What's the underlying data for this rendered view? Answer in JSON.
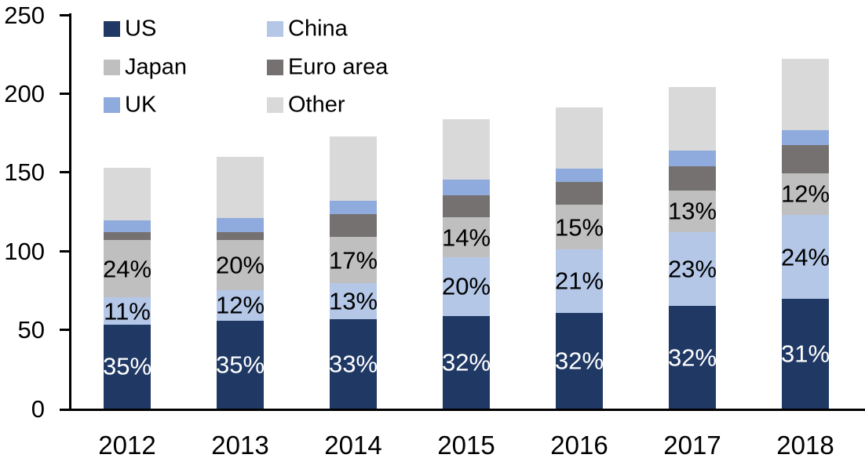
{
  "chart_data": {
    "type": "bar",
    "stacked": true,
    "title": "",
    "xlabel": "",
    "ylabel": "",
    "categories": [
      "2012",
      "2013",
      "2014",
      "2015",
      "2016",
      "2017",
      "2018"
    ],
    "series": [
      {
        "name": "US",
        "color": "#1F3864",
        "values": [
          53.5,
          56,
          57,
          59,
          61,
          65,
          69.5
        ],
        "bar_labels": [
          "35%",
          "35%",
          "33%",
          "32%",
          "32%",
          "32%",
          "31%"
        ],
        "label_color": "#FFFFFF"
      },
      {
        "name": "China",
        "color": "#B4C7E7",
        "values": [
          17,
          19,
          22.5,
          37,
          40,
          47,
          53.5
        ],
        "bar_labels": [
          "11%",
          "12%",
          "13%",
          "20%",
          "21%",
          "23%",
          "24%"
        ],
        "label_color": "#000000"
      },
      {
        "name": "Japan",
        "color": "#BFBFBF",
        "values": [
          36.5,
          32,
          29.5,
          25.5,
          28.5,
          26.5,
          26.5
        ],
        "bar_labels": [
          "24%",
          "20%",
          "17%",
          "14%",
          "15%",
          "13%",
          "12%"
        ],
        "label_color": "#000000"
      },
      {
        "name": "Euro area",
        "color": "#767171",
        "values": [
          5,
          5,
          14.5,
          14,
          14.5,
          15.5,
          18
        ],
        "bar_labels": null,
        "label_color": "#000000"
      },
      {
        "name": "UK",
        "color": "#8FAADC",
        "values": [
          7.5,
          9,
          8.5,
          10,
          8.5,
          10,
          9.5
        ],
        "bar_labels": null,
        "label_color": "#000000"
      },
      {
        "name": "Other",
        "color": "#D9D9D9",
        "values": [
          33.5,
          39,
          41,
          38.5,
          38.5,
          40,
          45
        ],
        "bar_labels": null,
        "label_color": "#000000"
      }
    ],
    "stack_order_bottom_to_top": [
      "US",
      "China",
      "Japan",
      "Euro area",
      "UK",
      "Other"
    ],
    "totals": [
      153,
      160,
      173,
      184,
      191,
      204,
      222
    ],
    "ylim": [
      0,
      250
    ],
    "y_ticks": [
      "0",
      "50",
      "100",
      "150",
      "200",
      "250"
    ],
    "grid": false,
    "axis_color": "#000000",
    "text_color": "#000000",
    "legend": {
      "position": "top-left",
      "columns": 2,
      "items_row_major": [
        "US",
        "China",
        "Japan",
        "Euro area",
        "UK",
        "Other"
      ]
    }
  }
}
